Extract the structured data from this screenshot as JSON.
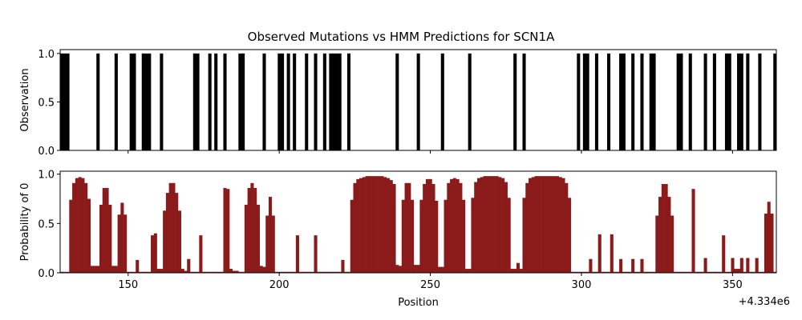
{
  "chart_data": [
    {
      "type": "bar",
      "title": "Observed Mutations vs HMM Predictions for SCN1A",
      "ylabel": "Observation",
      "color": "#000000",
      "x": [
        128,
        129,
        130,
        140,
        146,
        151,
        152,
        155,
        156,
        157,
        161,
        172,
        173,
        177,
        179,
        182,
        187,
        188,
        195,
        200,
        201,
        203,
        205,
        209,
        212,
        215,
        217,
        218,
        219,
        220,
        223,
        239,
        246,
        254,
        263,
        278,
        281,
        299,
        301,
        302,
        305,
        309,
        313,
        314,
        317,
        320,
        323,
        324,
        332,
        333,
        336,
        341,
        344,
        348,
        349,
        352,
        353,
        355,
        359,
        364
      ],
      "values": [
        1,
        1,
        1,
        1,
        1,
        1,
        1,
        1,
        1,
        1,
        1,
        1,
        1,
        1,
        1,
        1,
        1,
        1,
        1,
        1,
        1,
        1,
        1,
        1,
        1,
        1,
        1,
        1,
        1,
        1,
        1,
        1,
        1,
        1,
        1,
        1,
        1,
        1,
        1,
        1,
        1,
        1,
        1,
        1,
        1,
        1,
        1,
        1,
        1,
        1,
        1,
        1,
        1,
        1,
        1,
        1,
        1,
        1,
        1,
        1
      ],
      "xlim": [
        127.5,
        364.5
      ],
      "xticks": [
        150,
        200,
        250,
        300,
        350
      ],
      "ylim": [
        0,
        1.04
      ],
      "yticks": [
        {
          "value": 0,
          "label": "0.0"
        },
        {
          "value": 0.5,
          "label": "0.5"
        },
        {
          "value": 1,
          "label": "1.0"
        }
      ]
    },
    {
      "type": "bar",
      "ylabel": "Probability of 0",
      "xlabel": "Position",
      "x_offset_label": "+4.334e6",
      "color": "#8b1a1a",
      "x": [
        128,
        129,
        130,
        131,
        132,
        133,
        134,
        135,
        136,
        137,
        138,
        139,
        140,
        141,
        142,
        143,
        144,
        145,
        146,
        147,
        148,
        149,
        150,
        151,
        152,
        153,
        154,
        155,
        156,
        157,
        158,
        159,
        160,
        161,
        162,
        163,
        164,
        165,
        166,
        167,
        168,
        169,
        170,
        171,
        172,
        173,
        174,
        175,
        176,
        177,
        178,
        179,
        180,
        181,
        182,
        183,
        184,
        185,
        186,
        187,
        188,
        189,
        190,
        191,
        192,
        193,
        194,
        195,
        196,
        197,
        198,
        199,
        200,
        201,
        202,
        203,
        204,
        205,
        206,
        207,
        208,
        209,
        210,
        211,
        212,
        213,
        214,
        215,
        216,
        217,
        218,
        219,
        220,
        221,
        222,
        223,
        224,
        225,
        226,
        227,
        228,
        229,
        230,
        231,
        232,
        233,
        234,
        235,
        236,
        237,
        238,
        239,
        240,
        241,
        242,
        243,
        244,
        245,
        246,
        247,
        248,
        249,
        250,
        251,
        252,
        253,
        254,
        255,
        256,
        257,
        258,
        259,
        260,
        261,
        262,
        263,
        264,
        265,
        266,
        267,
        268,
        269,
        270,
        271,
        272,
        273,
        274,
        275,
        276,
        277,
        278,
        279,
        280,
        281,
        282,
        283,
        284,
        285,
        286,
        287,
        288,
        289,
        290,
        291,
        292,
        293,
        294,
        295,
        296,
        297,
        298,
        299,
        300,
        301,
        302,
        303,
        304,
        305,
        306,
        307,
        308,
        309,
        310,
        311,
        312,
        313,
        314,
        315,
        316,
        317,
        318,
        319,
        320,
        321,
        322,
        323,
        324,
        325,
        326,
        327,
        328,
        329,
        330,
        331,
        332,
        333,
        334,
        335,
        336,
        337,
        338,
        339,
        340,
        341,
        342,
        343,
        344,
        345,
        346,
        347,
        348,
        349,
        350,
        351,
        352,
        353,
        354,
        355,
        356,
        357,
        358,
        359,
        360,
        361,
        362,
        363,
        364
      ],
      "values": [
        0.01,
        0.01,
        0.01,
        0.74,
        0.91,
        0.96,
        0.97,
        0.96,
        0.91,
        0.75,
        0.07,
        0.07,
        0.07,
        0.69,
        0.86,
        0.86,
        0.69,
        0.07,
        0.07,
        0.59,
        0.71,
        0.59,
        0.01,
        0.01,
        0.01,
        0.13,
        0.01,
        0.01,
        0.01,
        0.01,
        0.38,
        0.4,
        0.04,
        0.04,
        0.63,
        0.81,
        0.91,
        0.91,
        0.81,
        0.63,
        0.04,
        0.02,
        0.14,
        0.01,
        0.01,
        0.01,
        0.38,
        0.01,
        0.01,
        0.01,
        0.01,
        0.01,
        0.01,
        0.01,
        0.86,
        0.85,
        0.04,
        0.02,
        0.02,
        0.01,
        0.01,
        0.69,
        0.86,
        0.91,
        0.86,
        0.69,
        0.07,
        0.06,
        0.58,
        0.77,
        0.58,
        0.01,
        0.01,
        0.01,
        0.01,
        0.01,
        0.01,
        0.01,
        0.38,
        0.01,
        0.01,
        0.01,
        0.01,
        0.01,
        0.38,
        0.01,
        0.01,
        0.01,
        0.01,
        0.01,
        0.01,
        0.01,
        0.01,
        0.13,
        0.01,
        0.01,
        0.74,
        0.91,
        0.95,
        0.96,
        0.97,
        0.98,
        0.98,
        0.98,
        0.98,
        0.98,
        0.98,
        0.97,
        0.96,
        0.94,
        0.9,
        0.08,
        0.07,
        0.74,
        0.91,
        0.91,
        0.74,
        0.08,
        0.08,
        0.74,
        0.9,
        0.95,
        0.95,
        0.9,
        0.73,
        0.06,
        0.06,
        0.74,
        0.91,
        0.95,
        0.96,
        0.95,
        0.91,
        0.74,
        0.04,
        0.04,
        0.76,
        0.92,
        0.96,
        0.97,
        0.98,
        0.98,
        0.98,
        0.98,
        0.98,
        0.97,
        0.96,
        0.92,
        0.76,
        0.04,
        0.04,
        0.1,
        0.04,
        0.76,
        0.91,
        0.96,
        0.97,
        0.98,
        0.98,
        0.98,
        0.98,
        0.98,
        0.98,
        0.98,
        0.98,
        0.97,
        0.96,
        0.91,
        0.76,
        0.01,
        0.01,
        0.01,
        0.01,
        0.01,
        0.01,
        0.14,
        0.01,
        0.01,
        0.39,
        0.01,
        0.01,
        0.01,
        0.39,
        0.01,
        0.01,
        0.14,
        0.01,
        0.01,
        0.01,
        0.14,
        0.01,
        0.01,
        0.14,
        0.01,
        0.01,
        0.01,
        0.01,
        0.58,
        0.77,
        0.9,
        0.9,
        0.77,
        0.58,
        0.01,
        0.01,
        0.01,
        0.01,
        0.01,
        0.01,
        0.85,
        0.01,
        0.01,
        0.01,
        0.15,
        0.01,
        0.01,
        0.01,
        0.01,
        0.01,
        0.38,
        0.01,
        0.01,
        0.15,
        0.04,
        0.04,
        0.15,
        0.01,
        0.15,
        0.01,
        0.01,
        0.15,
        0.01,
        0.01,
        0.6,
        0.72,
        0.6,
        0.01
      ],
      "xlim": [
        127.5,
        364.5
      ],
      "xticks": [
        150,
        200,
        250,
        300,
        350
      ],
      "ylim": [
        0,
        1.03
      ],
      "yticks": [
        {
          "value": 0,
          "label": "0.0"
        },
        {
          "value": 0.5,
          "label": "0.5"
        },
        {
          "value": 1,
          "label": "1.0"
        }
      ]
    }
  ]
}
